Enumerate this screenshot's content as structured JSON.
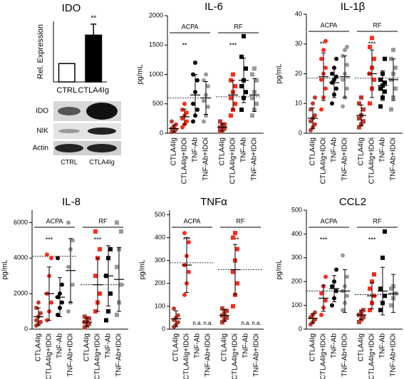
{
  "chart_data": [
    {
      "type": "bar",
      "title": "IDO",
      "y_label": "Rel. Expression",
      "categories": [
        "CTRL",
        "CTLA4Ig"
      ],
      "values": [
        1,
        2.55
      ],
      "errors": [
        null,
        0.6
      ],
      "colors": [
        "#ffffff",
        "#000000"
      ],
      "ylim": [
        0,
        3.3
      ],
      "annotation": "**"
    },
    {
      "type": "dotplot",
      "title": "IL-6",
      "y_label": "pg/mL",
      "categories": [
        "CTLA4Ig",
        "CTLA4Ig+IDOi",
        "TNF-Ab",
        "TNF-Ab+IDOi",
        "CTLA4Ig",
        "CTLA4Ig+IDOi",
        "TNF-Ab",
        "TNF-Ab+IDOi"
      ],
      "groups": [
        "ACPA",
        "RF"
      ],
      "markers": [
        "circle",
        "square"
      ],
      "annotations": [
        "**",
        "***"
      ],
      "reference_lines": [
        600,
        620
      ],
      "colors": [
        "#c0392b",
        "#ff2a1a",
        "#000000",
        "#999999",
        "#c0392b",
        "#ff2a1a",
        "#000000",
        "#999999"
      ],
      "points": [
        [
          20,
          40,
          60,
          80,
          100,
          150,
          200,
          30
        ],
        [
          100,
          150,
          200,
          250,
          300,
          350,
          400,
          500
        ],
        [
          200,
          300,
          400,
          500,
          700,
          900,
          1000,
          1200
        ],
        [
          200,
          300,
          450,
          550,
          650,
          800,
          900,
          1000
        ],
        [
          30,
          50,
          80,
          100,
          120,
          150,
          200,
          60
        ],
        [
          300,
          400,
          500,
          600,
          700,
          800,
          900,
          1000
        ],
        [
          400,
          600,
          700,
          800,
          900,
          1100,
          1300,
          1650
        ],
        [
          300,
          400,
          500,
          600,
          700,
          900,
          1000,
          1100
        ]
      ],
      "means": [
        80,
        280,
        650,
        600,
        100,
        650,
        900,
        650
      ],
      "sds": [
        60,
        130,
        350,
        280,
        60,
        250,
        380,
        280
      ],
      "ylim": [
        0,
        2000
      ],
      "yticks": [
        0,
        500,
        1000,
        1500,
        2000
      ]
    },
    {
      "type": "dotplot",
      "title": "IL-1β",
      "y_label": "pg/mL",
      "categories": [
        "CTLA4Ig",
        "CTLA4Ig+IDOi",
        "TNF-Ab",
        "TNF-Ab+IDOi",
        "CTLA4Ig",
        "CTLA4Ig+IDOi",
        "TNF-Ab",
        "TNF-Ab+IDOi"
      ],
      "groups": [
        "ACPA",
        "RF"
      ],
      "markers": [
        "circle",
        "square"
      ],
      "annotations": [
        "***",
        "***"
      ],
      "reference_lines": [
        18.5,
        18.5
      ],
      "colors": [
        "#c0392b",
        "#ff2a1a",
        "#000000",
        "#999999",
        "#c0392b",
        "#ff2a1a",
        "#000000",
        "#999999"
      ],
      "points": [
        [
          1,
          2,
          3,
          4,
          5,
          6,
          8,
          10,
          12
        ],
        [
          8,
          12,
          15,
          18,
          20,
          22,
          25,
          28,
          31
        ],
        [
          10,
          13,
          15,
          17,
          18,
          19,
          20,
          22,
          25
        ],
        [
          9,
          12,
          15,
          18,
          20,
          23,
          26,
          28,
          29
        ],
        [
          2,
          3,
          4,
          5,
          6,
          8,
          10,
          12
        ],
        [
          10,
          15,
          18,
          20,
          22,
          25,
          29,
          32
        ],
        [
          9,
          12,
          14,
          15,
          16,
          17,
          18,
          20,
          25
        ],
        [
          8,
          12,
          15,
          18,
          20,
          22,
          25,
          28
        ]
      ],
      "means": [
        5,
        19,
        17,
        19,
        6,
        20,
        16,
        18
      ],
      "sds": [
        3.5,
        8,
        5,
        7,
        3.5,
        8,
        5,
        7
      ],
      "ylim": [
        0,
        40
      ],
      "yticks": [
        0,
        10,
        20,
        30,
        40
      ]
    },
    {
      "type": "dotplot",
      "title": "IL-8",
      "y_label": "pg/mL",
      "categories": [
        "CTLA4Ig",
        "CTLA4Ig+IDOi",
        "TNF-Ab",
        "TNF-Ab+IDOi",
        "CTLA4Ig",
        "CTLA4Ig+IDOi",
        "TNF-Ab",
        "TNF-Ab+IDOi"
      ],
      "groups": [
        "ACPA",
        "RF"
      ],
      "markers": [
        "circle",
        "square"
      ],
      "annotations": [
        "***",
        "***"
      ],
      "reference_lines": [
        4100,
        2500
      ],
      "colors": [
        "#c0392b",
        "#ff2a1a",
        "#000000",
        "#999999",
        "#c0392b",
        "#ff2a1a",
        "#000000",
        "#999999"
      ],
      "points": [
        [
          200,
          300,
          400,
          500,
          700,
          900,
          1200,
          1500
        ],
        [
          500,
          1000,
          1500,
          2000,
          3000,
          4000,
          4200
        ],
        [
          800,
          1200,
          1500,
          1800,
          2000,
          2500,
          4000
        ],
        [
          1000,
          1500,
          2500,
          3500,
          4500,
          5000,
          6000
        ],
        [
          100,
          200,
          300,
          400,
          500,
          600,
          700
        ],
        [
          1000,
          1500,
          2000,
          3000,
          4000,
          4500,
          5500
        ],
        [
          500,
          1000,
          2000,
          3000,
          4000,
          4500
        ],
        [
          800,
          1500,
          2500,
          3500,
          4500,
          5500,
          6000
        ]
      ],
      "means": [
        700,
        2000,
        1800,
        3300,
        400,
        2500,
        3000,
        2800
      ],
      "sds": [
        500,
        1500,
        1100,
        1800,
        250,
        1500,
        1700,
        1800
      ],
      "ylim": [
        0,
        6700
      ],
      "yticks": [
        0,
        2000,
        4000,
        6000
      ]
    },
    {
      "type": "dotplot",
      "title": "TNFα",
      "y_label": "pg/mL",
      "categories": [
        "CTLA4Ig",
        "CTLA4Ig+IDOi",
        "TNF-Ab",
        "TNF-Ab+IDOi",
        "CTLA4Ig",
        "CTLA4Ig+IDOi",
        "TNF-Ab",
        "TNF-Ab+IDOi"
      ],
      "groups": [
        "ACPA",
        "RF"
      ],
      "markers": [
        "circle",
        "square"
      ],
      "annotations": [
        "***",
        "***"
      ],
      "reference_lines": [
        290,
        260
      ],
      "colors": [
        "#c0392b",
        "#ff2a1a",
        "#000000",
        "#999999",
        "#c0392b",
        "#ff2a1a",
        "#000000",
        "#999999"
      ],
      "points": [
        [
          10,
          20,
          30,
          40,
          50,
          60,
          90
        ],
        [
          150,
          200,
          250,
          280,
          320,
          380,
          420
        ],
        [],
        [],
        [
          30,
          40,
          50,
          60,
          70,
          80,
          90
        ],
        [
          100,
          150,
          200,
          250,
          300,
          350,
          400,
          420
        ],
        [],
        []
      ],
      "means": [
        45,
        280,
        null,
        null,
        60,
        260,
        null,
        null
      ],
      "sds": [
        35,
        120,
        null,
        null,
        25,
        110,
        null,
        null
      ],
      "na_labels": [
        null,
        null,
        "n.a.",
        "n.a.",
        null,
        null,
        "n.a.",
        "n.a."
      ],
      "ylim": [
        0,
        520
      ],
      "yticks": [
        0,
        100,
        200,
        300,
        400,
        500
      ]
    },
    {
      "type": "dotplot",
      "title": "CCL2",
      "y_label": "pg/mL",
      "categories": [
        "CTLA4Ig",
        "CTLA4Ig+IDOi",
        "TNF-Ab",
        "TNF-Ab+IDOi",
        "CTLA4Ig",
        "CTLA4Ig+IDOi",
        "TNF-Ab",
        "TNF-Ab+IDOi"
      ],
      "groups": [
        "ACPA",
        "RF"
      ],
      "markers": [
        "circle",
        "square"
      ],
      "annotations": [
        "***",
        "***"
      ],
      "reference_lines": [
        160,
        145
      ],
      "colors": [
        "#c0392b",
        "#ff2a1a",
        "#000000",
        "#999999",
        "#c0392b",
        "#ff2a1a",
        "#000000",
        "#999999"
      ],
      "points": [
        [
          20,
          30,
          40,
          50,
          60,
          70
        ],
        [
          60,
          90,
          120,
          150,
          180,
          220
        ],
        [
          100,
          130,
          160,
          180,
          200,
          250
        ],
        [
          80,
          110,
          140,
          160,
          180,
          220,
          310
        ],
        [
          30,
          40,
          50,
          60,
          70,
          80
        ],
        [
          80,
          110,
          140,
          170,
          200,
          230
        ],
        [
          80,
          110,
          140,
          170,
          300,
          410
        ],
        [
          100,
          130,
          150,
          170,
          180
        ]
      ],
      "means": [
        45,
        130,
        170,
        160,
        60,
        140,
        160,
        150
      ],
      "sds": [
        20,
        55,
        55,
        90,
        20,
        55,
        100,
        80
      ],
      "ylim": [
        0,
        500
      ],
      "yticks": [
        0,
        100,
        200,
        300,
        400,
        500
      ]
    }
  ],
  "blot": {
    "rows": [
      "IDO",
      "NIK",
      "Actin"
    ],
    "lanes": [
      "CTRL",
      "CTLA4Ig"
    ]
  }
}
